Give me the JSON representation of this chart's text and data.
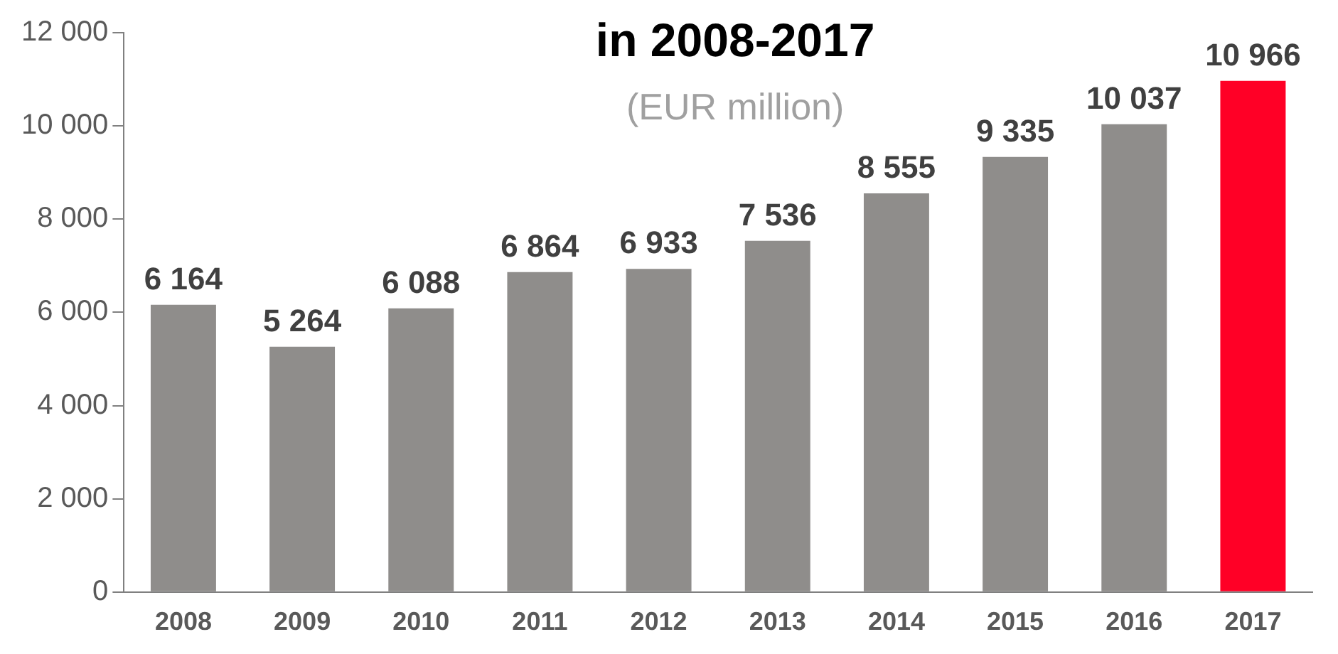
{
  "chart_data": {
    "type": "bar",
    "title": "in 2008-2017",
    "subtitle": "(EUR million)",
    "categories": [
      "2008",
      "2009",
      "2010",
      "2011",
      "2012",
      "2013",
      "2014",
      "2015",
      "2016",
      "2017"
    ],
    "values": [
      6164,
      5264,
      6088,
      6864,
      6933,
      7536,
      8555,
      9335,
      10037,
      10966
    ],
    "colors": [
      "#8f8d8b",
      "#8f8d8b",
      "#8f8d8b",
      "#8f8d8b",
      "#8f8d8b",
      "#8f8d8b",
      "#8f8d8b",
      "#8f8d8b",
      "#8f8d8b",
      "#ff0026"
    ],
    "value_labels": [
      "6 164",
      "5 264",
      "6 088",
      "6 864",
      "6 933",
      "7 536",
      "8 555",
      "9 335",
      "10 037",
      "10 966"
    ],
    "ylim": [
      0,
      12000
    ],
    "yticks": [
      0,
      {
        "value": 2000,
        "label": "2 000"
      },
      {
        "value": 4000,
        "label": "4 000"
      },
      {
        "value": 6000,
        "label": "6 000"
      },
      {
        "value": 8000,
        "label": "8 000"
      },
      {
        "value": 10000,
        "label": "10 000"
      },
      {
        "value": 12000,
        "label": "12 000"
      }
    ],
    "grid": false,
    "legend": false
  }
}
